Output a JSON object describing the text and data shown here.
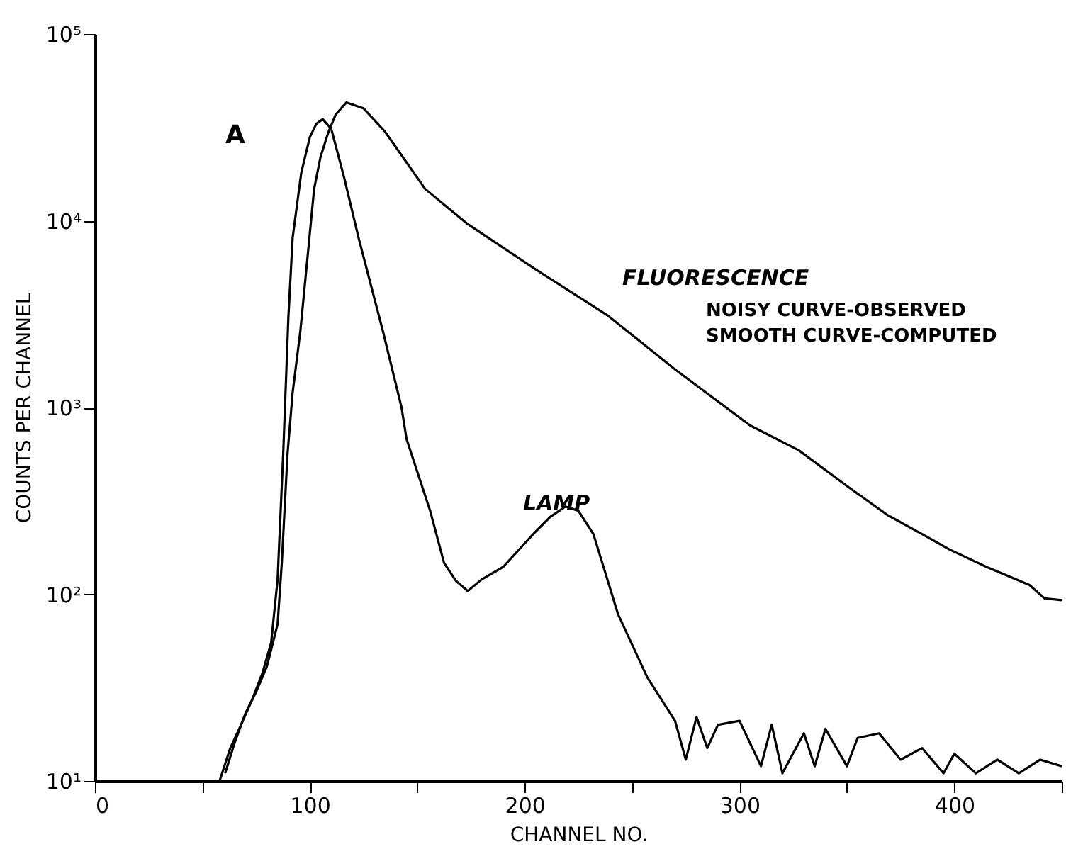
{
  "chart_data": {
    "type": "line",
    "xlabel": "CHANNEL NO.",
    "ylabel": "COUNTS PER CHANNEL",
    "log": "y",
    "grid": false,
    "legend": false,
    "marker": "none",
    "line_style": "solid",
    "xlim": [
      0,
      450
    ],
    "xticks": [
      0,
      {
        "value": 50,
        "label": null
      },
      100,
      {
        "value": 150,
        "label": null
      },
      200,
      {
        "value": 250,
        "label": null
      },
      300,
      {
        "value": 350,
        "label": null
      },
      400,
      {
        "value": 450,
        "label": null
      }
    ],
    "ylim": [
      10,
      100000
    ],
    "yticks": [
      {
        "value": 10,
        "label": "10¹"
      },
      {
        "value": 100,
        "label": "10²"
      },
      {
        "value": 1000,
        "label": "10³"
      },
      {
        "value": 10000,
        "label": "10⁴"
      },
      {
        "value": 100000,
        "label": "10⁵"
      }
    ],
    "series": [
      {
        "color": "#000000",
        "x": [
          60.6,
          65,
          70,
          75,
          80,
          85,
          87,
          89.6,
          92,
          95.6,
          99,
          102,
          105,
          108.5,
          112,
          117,
          125,
          135,
          153.7,
          173.5,
          204,
          239,
          270,
          305,
          327.6,
          350,
          369,
          385,
          397.6,
          415,
          435,
          442,
          450
        ],
        "values": [
          11,
          16,
          23,
          30,
          41,
          69,
          150,
          560,
          1200,
          2570,
          6500,
          14800,
          22000,
          29500,
          37000,
          43000,
          40000,
          30000,
          14800,
          9600,
          5600,
          3090,
          1600,
          800,
          590,
          380,
          265,
          210,
          174,
          140,
          112,
          95,
          93
        ]
      },
      {
        "color": "#000000",
        "x": [
          58,
          63,
          68,
          73,
          78,
          82,
          85,
          87.6,
          90,
          92,
          96,
          100,
          103,
          106,
          110,
          116,
          122.7,
          134,
          142.7,
          145,
          156,
          162.5,
          168,
          173.5,
          180,
          190,
          204,
          212,
          219,
          225,
          232,
          243.5,
          257,
          270,
          275,
          280,
          285,
          290,
          300,
          310,
          315,
          320,
          330,
          335,
          340,
          350,
          355,
          365,
          375,
          385,
          395,
          400,
          410,
          420,
          430,
          440,
          450
        ],
        "values": [
          10,
          15,
          20,
          27,
          38,
          55,
          120,
          560,
          3000,
          8100,
          18000,
          28000,
          33000,
          35000,
          31000,
          17000,
          8100,
          2570,
          1000,
          680,
          280,
          147,
          118,
          104,
          120,
          140,
          210,
          260,
          295,
          280,
          210,
          78,
          36,
          21,
          13,
          22,
          15,
          20,
          21,
          12,
          20,
          11,
          18,
          12,
          19,
          12,
          17,
          18,
          13,
          15,
          11,
          14,
          11,
          13,
          11,
          13,
          12
        ]
      }
    ],
    "annotations": [
      "FLUORESCENCE",
      "LAMP",
      "NOISY CURVE-OBSERVED",
      "SMOOTH CURVE-COMPUTED",
      "A"
    ]
  }
}
